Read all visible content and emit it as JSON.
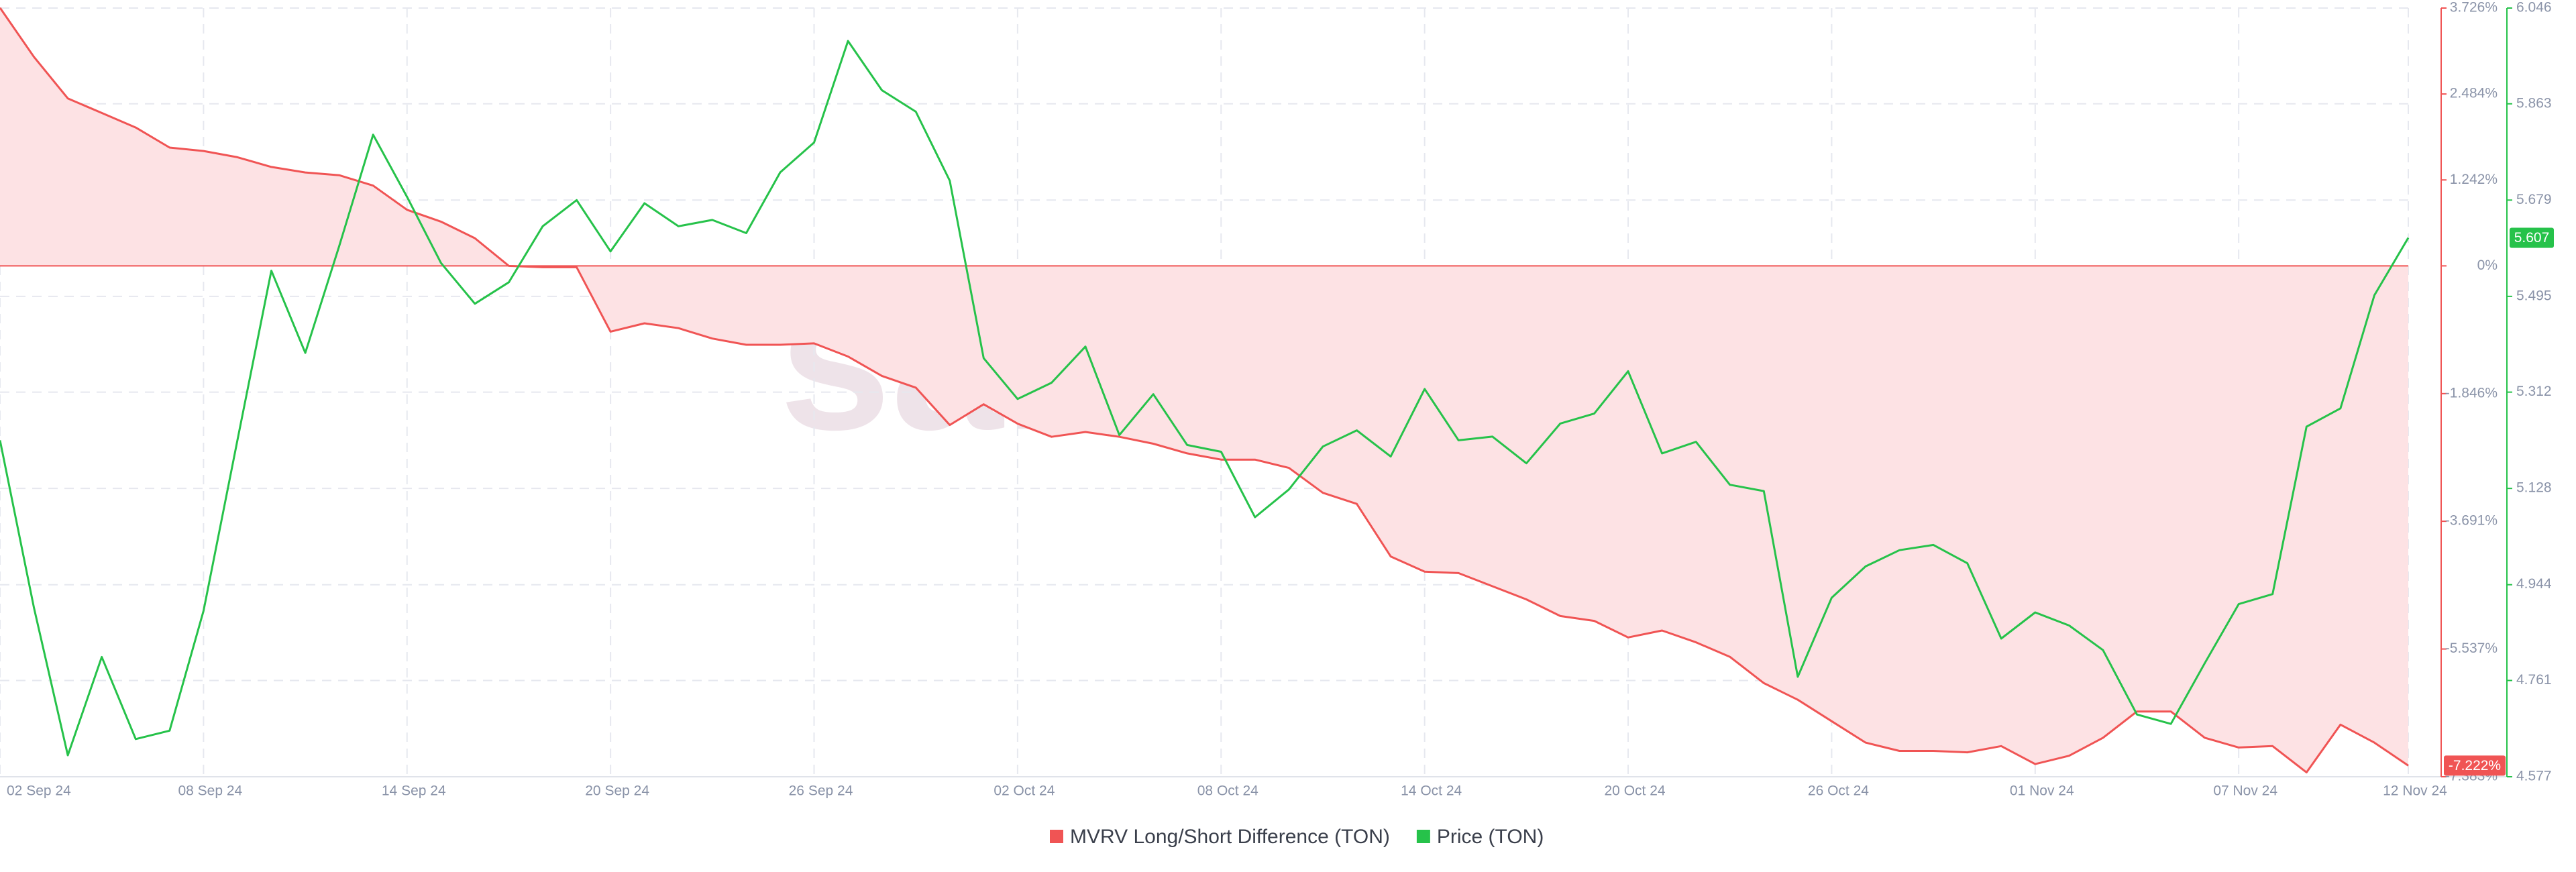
{
  "chart_data": {
    "type": "line",
    "watermark": "santiment",
    "x": [
      "2024-09-02",
      "2024-09-03",
      "2024-09-04",
      "2024-09-05",
      "2024-09-06",
      "2024-09-07",
      "2024-09-08",
      "2024-09-09",
      "2024-09-10",
      "2024-09-11",
      "2024-09-12",
      "2024-09-13",
      "2024-09-14",
      "2024-09-15",
      "2024-09-16",
      "2024-09-17",
      "2024-09-18",
      "2024-09-19",
      "2024-09-20",
      "2024-09-21",
      "2024-09-22",
      "2024-09-23",
      "2024-09-24",
      "2024-09-25",
      "2024-09-26",
      "2024-09-27",
      "2024-09-28",
      "2024-09-29",
      "2024-09-30",
      "2024-10-01",
      "2024-10-02",
      "2024-10-03",
      "2024-10-04",
      "2024-10-05",
      "2024-10-06",
      "2024-10-07",
      "2024-10-08",
      "2024-10-09",
      "2024-10-10",
      "2024-10-11",
      "2024-10-12",
      "2024-10-13",
      "2024-10-14",
      "2024-10-15",
      "2024-10-16",
      "2024-10-17",
      "2024-10-18",
      "2024-10-19",
      "2024-10-20",
      "2024-10-21",
      "2024-10-22",
      "2024-10-23",
      "2024-10-24",
      "2024-10-25",
      "2024-10-26",
      "2024-10-27",
      "2024-10-28",
      "2024-10-29",
      "2024-10-30",
      "2024-10-31",
      "2024-11-01",
      "2024-11-02",
      "2024-11-03",
      "2024-11-04",
      "2024-11-05",
      "2024-11-06",
      "2024-11-07",
      "2024-11-08",
      "2024-11-09",
      "2024-11-10",
      "2024-11-11",
      "2024-11-12"
    ],
    "xticks": [
      {
        "value": "2024-09-02",
        "label": "02 Sep 24"
      },
      {
        "value": "2024-09-08",
        "label": "08 Sep 24"
      },
      {
        "value": "2024-09-14",
        "label": "14 Sep 24"
      },
      {
        "value": "2024-09-20",
        "label": "20 Sep 24"
      },
      {
        "value": "2024-09-26",
        "label": "26 Sep 24"
      },
      {
        "value": "2024-10-02",
        "label": "02 Oct 24"
      },
      {
        "value": "2024-10-08",
        "label": "08 Oct 24"
      },
      {
        "value": "2024-10-14",
        "label": "14 Oct 24"
      },
      {
        "value": "2024-10-20",
        "label": "20 Oct 24"
      },
      {
        "value": "2024-10-26",
        "label": "26 Oct 24"
      },
      {
        "value": "2024-11-01",
        "label": "01 Nov 24"
      },
      {
        "value": "2024-11-07",
        "label": "07 Nov 24"
      },
      {
        "value": "2024-11-12",
        "label": "12 Nov 24"
      }
    ],
    "ylim": [
      -7.383,
      3.726
    ],
    "yticks": [
      {
        "value": 3.726,
        "label": "3.726%"
      },
      {
        "value": 2.484,
        "label": "2.484%"
      },
      {
        "value": 1.242,
        "label": "1.242%"
      },
      {
        "value": 0,
        "label": "0%"
      },
      {
        "value": -1.846,
        "label": "-1.846%"
      },
      {
        "value": -3.691,
        "label": "-3.691%"
      },
      {
        "value": -5.537,
        "label": "-5.537%"
      },
      {
        "value": -7.383,
        "label": "-7.383%"
      }
    ],
    "y2lim": [
      4.577,
      6.046
    ],
    "y2ticks": [
      6.046,
      5.863,
      5.679,
      5.495,
      5.312,
      5.128,
      4.944,
      4.761,
      4.577
    ],
    "grid": true,
    "legend": "bottom",
    "series": [
      {
        "name": "MVRV Long/Short Difference (TON)",
        "color": "#f05454",
        "fill": "#fde2e4",
        "last_label": "-7.222%",
        "values": [
          3.73,
          3.02,
          2.42,
          2.21,
          2.0,
          1.71,
          1.66,
          1.57,
          1.43,
          1.35,
          1.31,
          1.16,
          0.81,
          0.64,
          0.4,
          0.0,
          -0.02,
          -0.02,
          -0.95,
          -0.83,
          -0.9,
          -1.05,
          -1.14,
          -1.14,
          -1.12,
          -1.31,
          -1.59,
          -1.76,
          -2.3,
          -2.0,
          -2.28,
          -2.47,
          -2.4,
          -2.47,
          -2.57,
          -2.71,
          -2.8,
          -2.8,
          -2.92,
          -3.28,
          -3.44,
          -4.2,
          -4.42,
          -4.44,
          -4.63,
          -4.82,
          -5.06,
          -5.13,
          -5.37,
          -5.27,
          -5.44,
          -5.65,
          -6.03,
          -6.27,
          -6.58,
          -6.89,
          -7.01,
          -7.01,
          -7.03,
          -6.94,
          -7.2,
          -7.08,
          -6.82,
          -6.44,
          -6.44,
          -6.82,
          -6.96,
          -6.94,
          -7.32,
          -6.63,
          -6.89,
          -7.222
        ]
      },
      {
        "name": "Price (TON)",
        "color": "#26c24a",
        "axis": "y2",
        "last_label": "5.607",
        "values": [
          5.22,
          4.9,
          4.618,
          4.806,
          4.649,
          4.665,
          4.894,
          5.22,
          5.544,
          5.387,
          5.591,
          5.804,
          5.685,
          5.559,
          5.481,
          5.522,
          5.629,
          5.679,
          5.581,
          5.673,
          5.629,
          5.641,
          5.616,
          5.732,
          5.789,
          5.983,
          5.889,
          5.848,
          5.716,
          5.377,
          5.299,
          5.33,
          5.399,
          5.23,
          5.308,
          5.211,
          5.198,
          5.073,
          5.126,
          5.208,
          5.239,
          5.189,
          5.318,
          5.22,
          5.227,
          5.176,
          5.252,
          5.271,
          5.352,
          5.195,
          5.217,
          5.135,
          5.123,
          4.768,
          4.919,
          4.979,
          5.01,
          5.02,
          4.985,
          4.841,
          4.891,
          4.866,
          4.819,
          4.696,
          4.678,
          4.794,
          4.907,
          4.926,
          5.246,
          5.281,
          5.497,
          5.607
        ]
      }
    ]
  }
}
